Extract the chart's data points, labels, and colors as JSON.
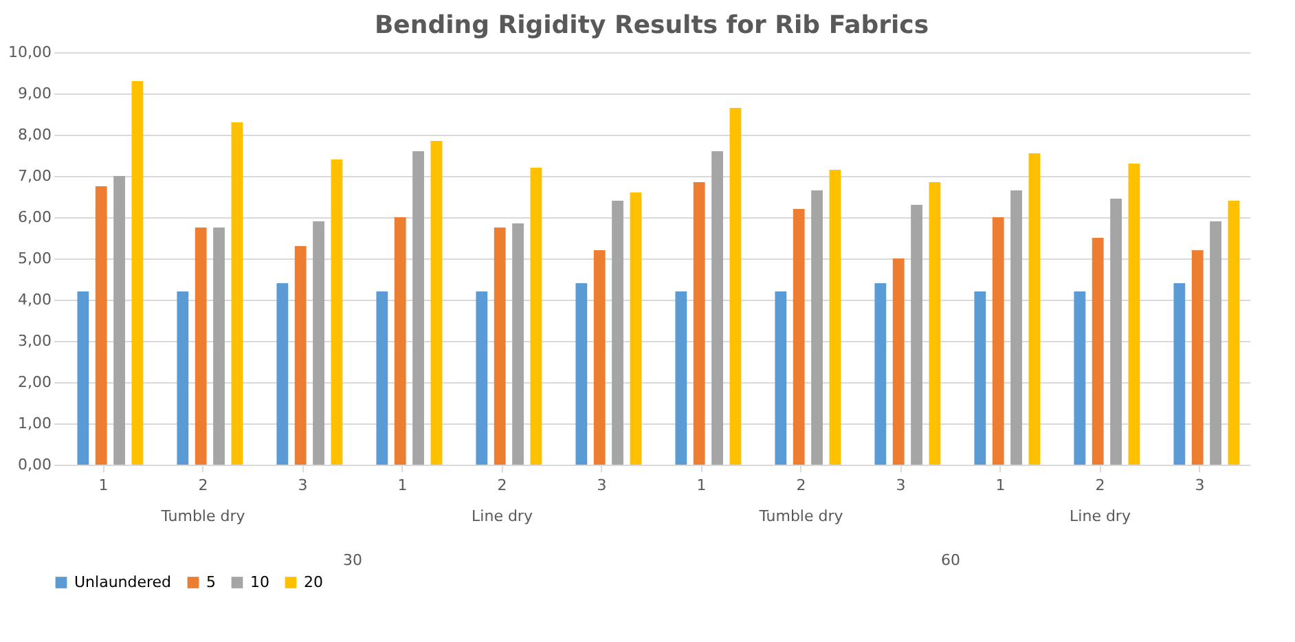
{
  "chart_data": {
    "type": "bar",
    "title": "Bending Rigidity Results for Rib Fabrics",
    "categories": [
      "1",
      "2",
      "3",
      "1",
      "2",
      "3",
      "1",
      "2",
      "3",
      "1",
      "2",
      "3"
    ],
    "series": [
      {
        "name": "Unlaundered",
        "color": "#5b9bd5",
        "values": [
          4.2,
          4.2,
          4.4,
          4.2,
          4.2,
          4.4,
          4.2,
          4.2,
          4.4,
          4.2,
          4.2,
          4.4
        ]
      },
      {
        "name": "5",
        "color": "#ed7d31",
        "values": [
          6.75,
          5.75,
          5.3,
          6.0,
          5.75,
          5.2,
          6.85,
          6.2,
          5.0,
          6.0,
          5.5,
          5.2
        ]
      },
      {
        "name": "10",
        "color": "#a5a5a5",
        "values": [
          7.0,
          5.75,
          5.9,
          7.6,
          5.85,
          6.4,
          7.6,
          6.65,
          6.3,
          6.65,
          6.45,
          5.9
        ]
      },
      {
        "name": "20",
        "color": "#ffc000",
        "values": [
          9.3,
          8.3,
          7.4,
          7.85,
          7.2,
          6.6,
          8.65,
          7.15,
          6.85,
          7.55,
          7.3,
          6.4
        ]
      }
    ],
    "annotations": [
      "Tumble dry",
      "Line dry",
      "Tumble dry",
      "Line dry",
      "30",
      "60"
    ],
    "ylim": [
      0,
      10
    ],
    "yticks": [
      {
        "value": 0,
        "label": "0,00"
      },
      {
        "value": 1,
        "label": "1,00"
      },
      {
        "value": 2,
        "label": "2,00"
      },
      {
        "value": 3,
        "label": "3,00"
      },
      {
        "value": 4,
        "label": "4,00"
      },
      {
        "value": 5,
        "label": "5,00"
      },
      {
        "value": 6,
        "label": "6,00"
      },
      {
        "value": 7,
        "label": "7,00"
      },
      {
        "value": 8,
        "label": "8,00"
      },
      {
        "value": 9,
        "label": "9,00"
      },
      {
        "value": 10,
        "label": "10,00"
      }
    ],
    "grid": "y",
    "legend": "bottom"
  }
}
